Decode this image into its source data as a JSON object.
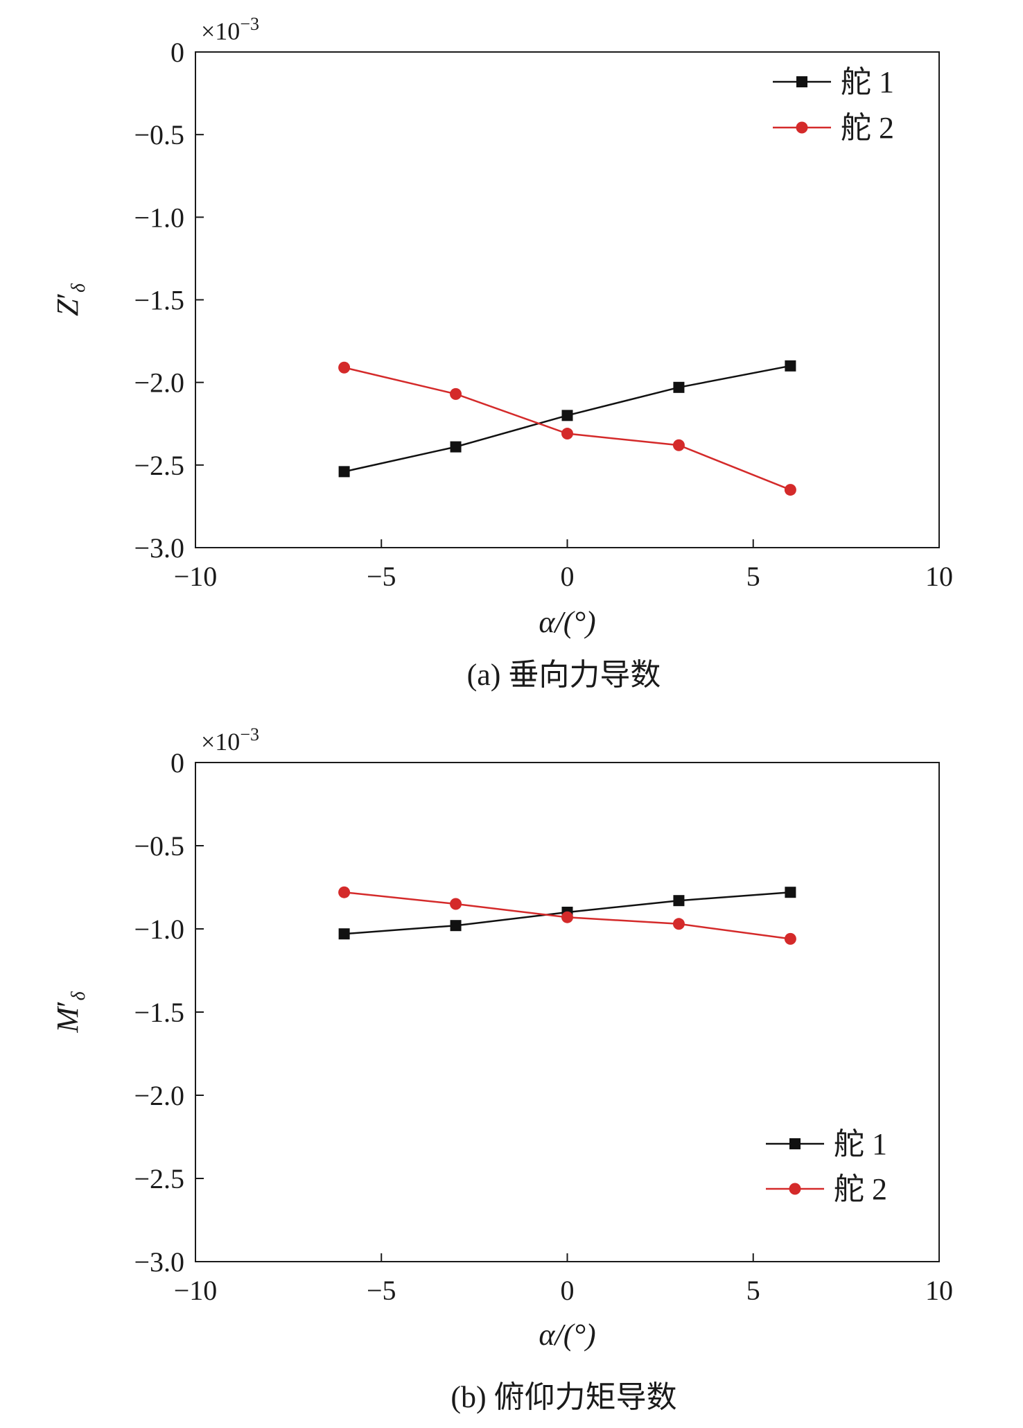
{
  "chart_data": [
    {
      "type": "line",
      "caption": "(a) 垂向力导数",
      "xlabel": "α/(°)",
      "ylabel": {
        "base": "Z",
        "prime": "′",
        "sub": "δ"
      },
      "multiplier": {
        "base": "×10",
        "exp": "−3"
      },
      "xlim": [
        -10,
        10
      ],
      "ylim": [
        -3.0,
        0
      ],
      "xticks": [
        -10,
        -5,
        0,
        5,
        10
      ],
      "xtick_labels": [
        "−10",
        "−5",
        "0",
        "5",
        "10"
      ],
      "yticks": [
        0,
        -0.5,
        -1.0,
        -1.5,
        -2.0,
        -2.5,
        -3.0
      ],
      "ytick_labels": [
        "0",
        "−0.5",
        "−1.0",
        "−1.5",
        "−2.0",
        "−2.5",
        "−3.0"
      ],
      "grid": false,
      "legend_position": "top-right",
      "x": [
        -6,
        -3,
        0,
        3,
        6
      ],
      "series": [
        {
          "name": "舵 1",
          "marker": "square",
          "color": "#111111",
          "values": [
            -2.54,
            -2.39,
            -2.2,
            -2.03,
            -1.9
          ]
        },
        {
          "name": "舵 2",
          "marker": "circle",
          "color": "#d42a2a",
          "values": [
            -1.91,
            -2.07,
            -2.31,
            -2.38,
            -2.65
          ]
        }
      ]
    },
    {
      "type": "line",
      "caption": "(b) 俯仰力矩导数",
      "xlabel": "α/(°)",
      "ylabel": {
        "base": "M",
        "prime": "′",
        "sub": "δ"
      },
      "multiplier": {
        "base": "×10",
        "exp": "−3"
      },
      "xlim": [
        -10,
        10
      ],
      "ylim": [
        -3.0,
        0
      ],
      "xticks": [
        -10,
        -5,
        0,
        5,
        10
      ],
      "xtick_labels": [
        "−10",
        "−5",
        "0",
        "5",
        "10"
      ],
      "yticks": [
        0,
        -0.5,
        -1.0,
        -1.5,
        -2.0,
        -2.5,
        -3.0
      ],
      "ytick_labels": [
        "0",
        "−0.5",
        "−1.0",
        "−1.5",
        "−2.0",
        "−2.5",
        "−3.0"
      ],
      "grid": false,
      "legend_position": "bottom-right",
      "x": [
        -6,
        -3,
        0,
        3,
        6
      ],
      "series": [
        {
          "name": "舵 1",
          "marker": "square",
          "color": "#111111",
          "values": [
            -1.03,
            -0.98,
            -0.9,
            -0.83,
            -0.78
          ]
        },
        {
          "name": "舵 2",
          "marker": "circle",
          "color": "#d42a2a",
          "values": [
            -0.78,
            -0.85,
            -0.93,
            -0.97,
            -1.06
          ]
        }
      ]
    }
  ]
}
